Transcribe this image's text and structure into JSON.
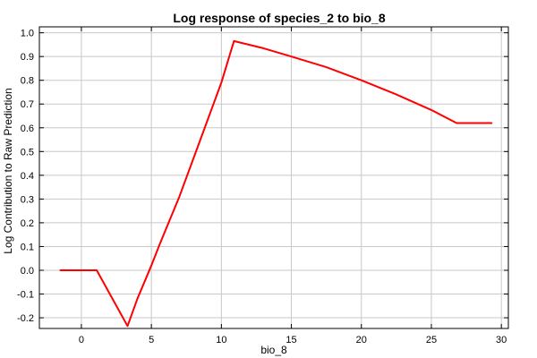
{
  "chart_data": {
    "type": "line",
    "title": "Log response of species_2 to bio_8",
    "xlabel": "bio_8",
    "ylabel": "Log Contribution to Raw Prediction",
    "xlim": [
      -3,
      30.5
    ],
    "ylim": [
      -0.245,
      1.025
    ],
    "x_ticks": [
      0,
      5,
      10,
      15,
      20,
      25,
      30
    ],
    "y_ticks": [
      -0.2,
      -0.1,
      0.0,
      0.1,
      0.2,
      0.3,
      0.4,
      0.5,
      0.6,
      0.7,
      0.8,
      0.9,
      1.0
    ],
    "x_tick_labels": [
      "0",
      "5",
      "10",
      "15",
      "20",
      "25",
      "30"
    ],
    "y_tick_labels": [
      "-0.2",
      "-0.1",
      "0.0",
      "0.1",
      "0.2",
      "0.3",
      "0.4",
      "0.5",
      "0.6",
      "0.7",
      "0.8",
      "0.9",
      "1.0"
    ],
    "grid": true,
    "series": [
      {
        "color": "#ff0000",
        "x": [
          -1.5,
          1.1,
          3.3,
          4.0,
          5.0,
          5.6,
          7.0,
          8.5,
          10.0,
          10.9,
          13.0,
          15.0,
          17.5,
          20.0,
          22.5,
          25.0,
          26.8,
          29.3
        ],
        "y": [
          0.0,
          0.0,
          -0.235,
          -0.12,
          0.02,
          0.11,
          0.31,
          0.55,
          0.79,
          0.965,
          0.935,
          0.9,
          0.855,
          0.8,
          0.74,
          0.675,
          0.62,
          0.62
        ]
      }
    ]
  }
}
